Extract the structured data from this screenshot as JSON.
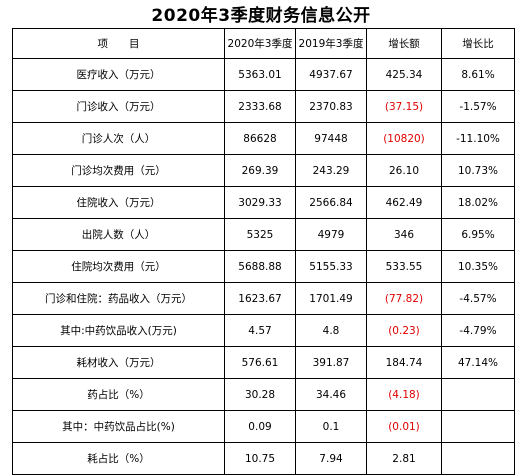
{
  "title": "2020年3季度财务信息公开",
  "colors": {
    "negative": "#e00000",
    "text": "#000000",
    "border": "#000000"
  },
  "headers": [
    "项　　目",
    "2020年3季度",
    "2019年3季度",
    "增长额",
    "增长比"
  ],
  "rows": [
    {
      "item": "医疗收入（万元）",
      "q3_2020": "5363.01",
      "q3_2019": "4937.67",
      "growth": "425.34",
      "growth_negative": false,
      "ratio": "8.61%"
    },
    {
      "item": "门诊收入（万元）",
      "q3_2020": "2333.68",
      "q3_2019": "2370.83",
      "growth": "(37.15)",
      "growth_negative": true,
      "ratio": "-1.57%"
    },
    {
      "item": "门诊人次（人）",
      "q3_2020": "86628",
      "q3_2019": "97448",
      "growth": "(10820)",
      "growth_negative": true,
      "ratio": "-11.10%"
    },
    {
      "item": "门诊均次费用（元）",
      "q3_2020": "269.39",
      "q3_2019": "243.29",
      "growth": "26.10",
      "growth_negative": false,
      "ratio": "10.73%"
    },
    {
      "item": "住院收入（万元）",
      "q3_2020": "3029.33",
      "q3_2019": "2566.84",
      "growth": "462.49",
      "growth_negative": false,
      "ratio": "18.02%"
    },
    {
      "item": "出院人数（人）",
      "q3_2020": "5325",
      "q3_2019": "4979",
      "growth": "346",
      "growth_negative": false,
      "ratio": "6.95%"
    },
    {
      "item": "住院均次费用（元）",
      "q3_2020": "5688.88",
      "q3_2019": "5155.33",
      "growth": "533.55",
      "growth_negative": false,
      "ratio": "10.35%"
    },
    {
      "item": "门诊和住院：药品收入（万元）",
      "q3_2020": "1623.67",
      "q3_2019": "1701.49",
      "growth": "(77.82)",
      "growth_negative": true,
      "ratio": "-4.57%"
    },
    {
      "item": "其中:中药饮品收入(万元)",
      "q3_2020": "4.57",
      "q3_2019": "4.8",
      "growth": "(0.23)",
      "growth_negative": true,
      "ratio": "-4.79%"
    },
    {
      "item": "耗材收入（万元）",
      "q3_2020": "576.61",
      "q3_2019": "391.87",
      "growth": "184.74",
      "growth_negative": false,
      "ratio": "47.14%"
    },
    {
      "item": "药占比（%）",
      "q3_2020": "30.28",
      "q3_2019": "34.46",
      "growth": "(4.18)",
      "growth_negative": true,
      "ratio": ""
    },
    {
      "item": "其中：中药饮品占比(%)",
      "q3_2020": "0.09",
      "q3_2019": "0.1",
      "growth": "(0.01)",
      "growth_negative": true,
      "ratio": ""
    },
    {
      "item": "耗占比（%）",
      "q3_2020": "10.75",
      "q3_2019": "7.94",
      "growth": "2.81",
      "growth_negative": false,
      "ratio": ""
    }
  ]
}
